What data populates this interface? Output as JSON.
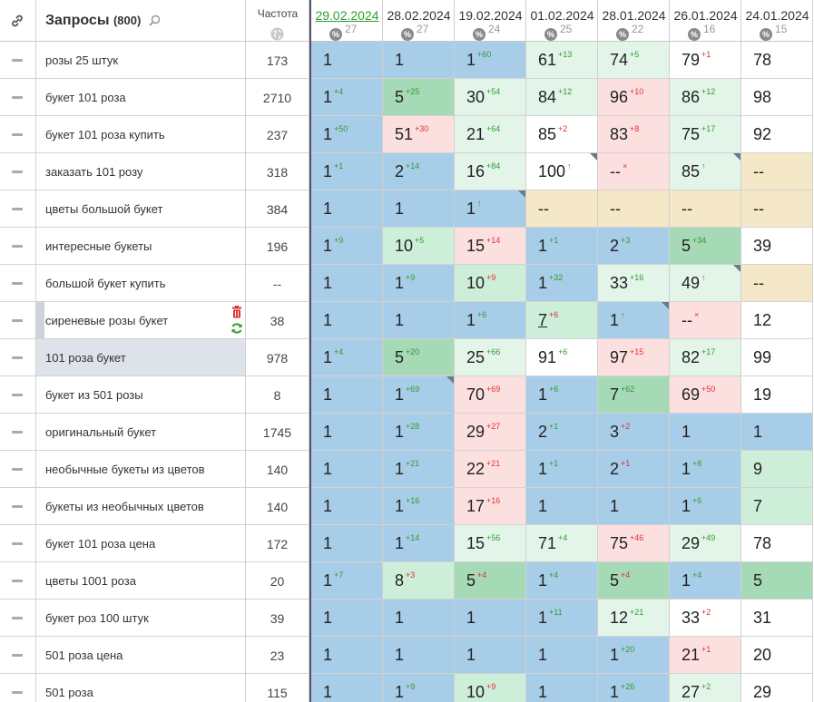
{
  "header": {
    "title": "Запросы",
    "count": "(800)",
    "freq_label": "Частота",
    "dates": [
      {
        "date": "29.02.2024",
        "count": "27",
        "active": true
      },
      {
        "date": "28.02.2024",
        "count": "27"
      },
      {
        "date": "19.02.2024",
        "count": "24"
      },
      {
        "date": "01.02.2024",
        "count": "25"
      },
      {
        "date": "28.01.2024",
        "count": "22"
      },
      {
        "date": "26.01.2024",
        "count": "16"
      },
      {
        "date": "24.01.2024",
        "count": "15"
      }
    ],
    "pct_symbol": "%"
  },
  "colors": {
    "top": "#a8cde9",
    "top2": "#a6d9b6",
    "good": "#cdeed8",
    "pale": "#e3f5e8",
    "bad": "#fce0e0",
    "none": "#f5e8c8",
    "white": "#ffffff"
  },
  "rows": [
    {
      "query": "розы 25 штук",
      "freq": "173",
      "cells": [
        {
          "v": "1",
          "c": "top"
        },
        {
          "v": "1",
          "c": "top"
        },
        {
          "v": "1",
          "d": "+60",
          "dir": "up",
          "c": "top"
        },
        {
          "v": "61",
          "d": "+13",
          "dir": "up",
          "c": "pale"
        },
        {
          "v": "74",
          "d": "+5",
          "dir": "up",
          "c": "pale"
        },
        {
          "v": "79",
          "d": "+1",
          "dir": "dn",
          "c": "white"
        },
        {
          "v": "78",
          "c": "white"
        }
      ]
    },
    {
      "query": "букет 101 роза",
      "freq": "2710",
      "cells": [
        {
          "v": "1",
          "d": "+4",
          "dir": "up",
          "c": "top"
        },
        {
          "v": "5",
          "d": "+25",
          "dir": "up",
          "c": "top2"
        },
        {
          "v": "30",
          "d": "+54",
          "dir": "up",
          "c": "pale"
        },
        {
          "v": "84",
          "d": "+12",
          "dir": "up",
          "c": "pale"
        },
        {
          "v": "96",
          "d": "+10",
          "dir": "dn",
          "c": "bad"
        },
        {
          "v": "86",
          "d": "+12",
          "dir": "up",
          "c": "pale"
        },
        {
          "v": "98",
          "c": "white"
        }
      ]
    },
    {
      "query": "букет 101 роза купить",
      "freq": "237",
      "cells": [
        {
          "v": "1",
          "d": "+50",
          "dir": "up",
          "c": "top"
        },
        {
          "v": "51",
          "d": "+30",
          "dir": "dn",
          "c": "bad"
        },
        {
          "v": "21",
          "d": "+64",
          "dir": "up",
          "c": "pale"
        },
        {
          "v": "85",
          "d": "+2",
          "dir": "dn",
          "c": "white"
        },
        {
          "v": "83",
          "d": "+8",
          "dir": "dn",
          "c": "bad"
        },
        {
          "v": "75",
          "d": "+17",
          "dir": "up",
          "c": "pale"
        },
        {
          "v": "92",
          "c": "white"
        }
      ]
    },
    {
      "query": "заказать 101 розу",
      "freq": "318",
      "cells": [
        {
          "v": "1",
          "d": "+1",
          "dir": "up",
          "c": "top"
        },
        {
          "v": "2",
          "d": "+14",
          "dir": "up",
          "c": "top"
        },
        {
          "v": "16",
          "d": "+84",
          "dir": "up",
          "c": "pale"
        },
        {
          "v": "100",
          "d": "↑",
          "dir": "up",
          "c": "white",
          "corner": true
        },
        {
          "v": "--",
          "d": "×",
          "dir": "dn",
          "c": "bad"
        },
        {
          "v": "85",
          "d": "↑",
          "dir": "up",
          "c": "pale",
          "corner": true
        },
        {
          "v": "--",
          "c": "none"
        }
      ]
    },
    {
      "query": "цветы большой букет",
      "freq": "384",
      "cells": [
        {
          "v": "1",
          "c": "top"
        },
        {
          "v": "1",
          "c": "top"
        },
        {
          "v": "1",
          "d": "↑",
          "dir": "up",
          "c": "top",
          "corner": true
        },
        {
          "v": "--",
          "c": "none"
        },
        {
          "v": "--",
          "c": "none"
        },
        {
          "v": "--",
          "c": "none"
        },
        {
          "v": "--",
          "c": "none"
        }
      ]
    },
    {
      "query": "интересные букеты",
      "freq": "196",
      "cells": [
        {
          "v": "1",
          "d": "+9",
          "dir": "up",
          "c": "top"
        },
        {
          "v": "10",
          "d": "+5",
          "dir": "up",
          "c": "good"
        },
        {
          "v": "15",
          "d": "+14",
          "dir": "dn",
          "c": "bad"
        },
        {
          "v": "1",
          "d": "+1",
          "dir": "up",
          "c": "top"
        },
        {
          "v": "2",
          "d": "+3",
          "dir": "up",
          "c": "top"
        },
        {
          "v": "5",
          "d": "+34",
          "dir": "up",
          "c": "top2"
        },
        {
          "v": "39",
          "c": "white"
        }
      ]
    },
    {
      "query": "большой букет купить",
      "freq": "--",
      "cells": [
        {
          "v": "1",
          "c": "top"
        },
        {
          "v": "1",
          "d": "+9",
          "dir": "up",
          "c": "top"
        },
        {
          "v": "10",
          "d": "+9",
          "dir": "dn",
          "c": "good"
        },
        {
          "v": "1",
          "d": "+32",
          "dir": "up",
          "c": "top"
        },
        {
          "v": "33",
          "d": "+16",
          "dir": "up",
          "c": "pale"
        },
        {
          "v": "49",
          "d": "↑",
          "dir": "up",
          "c": "pale",
          "corner": true
        },
        {
          "v": "--",
          "c": "none"
        }
      ]
    },
    {
      "query": "сиреневые розы букет",
      "freq": "38",
      "selbar": true,
      "actions": true,
      "cells": [
        {
          "v": "1",
          "c": "top"
        },
        {
          "v": "1",
          "c": "top"
        },
        {
          "v": "1",
          "d": "+6",
          "dir": "up",
          "c": "top"
        },
        {
          "v": "7",
          "d": "+6",
          "dir": "dn",
          "c": "good",
          "u": true
        },
        {
          "v": "1",
          "d": "↑",
          "dir": "up",
          "c": "top",
          "corner": true
        },
        {
          "v": "--",
          "d": "×",
          "dir": "dn",
          "c": "bad"
        },
        {
          "v": "12",
          "c": "white"
        }
      ]
    },
    {
      "query": "101 роза букет",
      "freq": "978",
      "selected": true,
      "cells": [
        {
          "v": "1",
          "d": "+4",
          "dir": "up",
          "c": "top"
        },
        {
          "v": "5",
          "d": "+20",
          "dir": "up",
          "c": "top2"
        },
        {
          "v": "25",
          "d": "+66",
          "dir": "up",
          "c": "pale"
        },
        {
          "v": "91",
          "d": "+6",
          "dir": "up",
          "c": "white"
        },
        {
          "v": "97",
          "d": "+15",
          "dir": "dn",
          "c": "bad"
        },
        {
          "v": "82",
          "d": "+17",
          "dir": "up",
          "c": "pale"
        },
        {
          "v": "99",
          "c": "white"
        }
      ]
    },
    {
      "query": "букет из 501 розы",
      "freq": "8",
      "cells": [
        {
          "v": "1",
          "c": "top"
        },
        {
          "v": "1",
          "d": "+69",
          "dir": "up",
          "c": "top",
          "corner": true
        },
        {
          "v": "70",
          "d": "+69",
          "dir": "dn",
          "c": "bad"
        },
        {
          "v": "1",
          "d": "+6",
          "dir": "up",
          "c": "top"
        },
        {
          "v": "7",
          "d": "+62",
          "dir": "up",
          "c": "top2"
        },
        {
          "v": "69",
          "d": "+50",
          "dir": "dn",
          "c": "bad"
        },
        {
          "v": "19",
          "c": "white"
        }
      ]
    },
    {
      "query": "оригинальный букет",
      "freq": "1745",
      "cells": [
        {
          "v": "1",
          "c": "top"
        },
        {
          "v": "1",
          "d": "+28",
          "dir": "up",
          "c": "top"
        },
        {
          "v": "29",
          "d": "+27",
          "dir": "dn",
          "c": "bad"
        },
        {
          "v": "2",
          "d": "+1",
          "dir": "up",
          "c": "top"
        },
        {
          "v": "3",
          "d": "+2",
          "dir": "dn",
          "c": "top"
        },
        {
          "v": "1",
          "c": "top"
        },
        {
          "v": "1",
          "c": "top"
        }
      ]
    },
    {
      "query": "необычные букеты из цветов",
      "freq": "140",
      "cells": [
        {
          "v": "1",
          "c": "top"
        },
        {
          "v": "1",
          "d": "+21",
          "dir": "up",
          "c": "top"
        },
        {
          "v": "22",
          "d": "+21",
          "dir": "dn",
          "c": "bad"
        },
        {
          "v": "1",
          "d": "+1",
          "dir": "up",
          "c": "top"
        },
        {
          "v": "2",
          "d": "+1",
          "dir": "dn",
          "c": "top"
        },
        {
          "v": "1",
          "d": "+8",
          "dir": "up",
          "c": "top"
        },
        {
          "v": "9",
          "c": "good"
        }
      ]
    },
    {
      "query": "букеты из необычных цветов",
      "freq": "140",
      "cells": [
        {
          "v": "1",
          "c": "top"
        },
        {
          "v": "1",
          "d": "+16",
          "dir": "up",
          "c": "top"
        },
        {
          "v": "17",
          "d": "+16",
          "dir": "dn",
          "c": "bad"
        },
        {
          "v": "1",
          "c": "top"
        },
        {
          "v": "1",
          "c": "top"
        },
        {
          "v": "1",
          "d": "+6",
          "dir": "up",
          "c": "top"
        },
        {
          "v": "7",
          "c": "good"
        }
      ]
    },
    {
      "query": "букет 101 роза цена",
      "freq": "172",
      "cells": [
        {
          "v": "1",
          "c": "top"
        },
        {
          "v": "1",
          "d": "+14",
          "dir": "up",
          "c": "top"
        },
        {
          "v": "15",
          "d": "+56",
          "dir": "up",
          "c": "pale"
        },
        {
          "v": "71",
          "d": "+4",
          "dir": "up",
          "c": "pale"
        },
        {
          "v": "75",
          "d": "+46",
          "dir": "dn",
          "c": "bad"
        },
        {
          "v": "29",
          "d": "+49",
          "dir": "up",
          "c": "pale"
        },
        {
          "v": "78",
          "c": "white"
        }
      ]
    },
    {
      "query": "цветы 1001 роза",
      "freq": "20",
      "cells": [
        {
          "v": "1",
          "d": "+7",
          "dir": "up",
          "c": "top"
        },
        {
          "v": "8",
          "d": "+3",
          "dir": "dn",
          "c": "good"
        },
        {
          "v": "5",
          "d": "+4",
          "dir": "dn",
          "c": "top2"
        },
        {
          "v": "1",
          "d": "+4",
          "dir": "up",
          "c": "top"
        },
        {
          "v": "5",
          "d": "+4",
          "dir": "dn",
          "c": "top2"
        },
        {
          "v": "1",
          "d": "+4",
          "dir": "up",
          "c": "top"
        },
        {
          "v": "5",
          "c": "top2"
        }
      ]
    },
    {
      "query": "букет роз 100 штук",
      "freq": "39",
      "cells": [
        {
          "v": "1",
          "c": "top"
        },
        {
          "v": "1",
          "c": "top"
        },
        {
          "v": "1",
          "c": "top"
        },
        {
          "v": "1",
          "d": "+11",
          "dir": "up",
          "c": "top"
        },
        {
          "v": "12",
          "d": "+21",
          "dir": "up",
          "c": "pale"
        },
        {
          "v": "33",
          "d": "+2",
          "dir": "dn",
          "c": "white"
        },
        {
          "v": "31",
          "c": "white"
        }
      ]
    },
    {
      "query": "501 роза цена",
      "freq": "23",
      "cells": [
        {
          "v": "1",
          "c": "top"
        },
        {
          "v": "1",
          "c": "top"
        },
        {
          "v": "1",
          "c": "top"
        },
        {
          "v": "1",
          "c": "top"
        },
        {
          "v": "1",
          "d": "+20",
          "dir": "up",
          "c": "top"
        },
        {
          "v": "21",
          "d": "+1",
          "dir": "dn",
          "c": "bad"
        },
        {
          "v": "20",
          "c": "white"
        }
      ]
    },
    {
      "query": "501 роза",
      "freq": "115",
      "cells": [
        {
          "v": "1",
          "c": "top"
        },
        {
          "v": "1",
          "d": "+9",
          "dir": "up",
          "c": "top"
        },
        {
          "v": "10",
          "d": "+9",
          "dir": "dn",
          "c": "good"
        },
        {
          "v": "1",
          "c": "top"
        },
        {
          "v": "1",
          "d": "+26",
          "dir": "up",
          "c": "top"
        },
        {
          "v": "27",
          "d": "+2",
          "dir": "up",
          "c": "pale"
        },
        {
          "v": "29",
          "c": "white"
        }
      ]
    }
  ]
}
